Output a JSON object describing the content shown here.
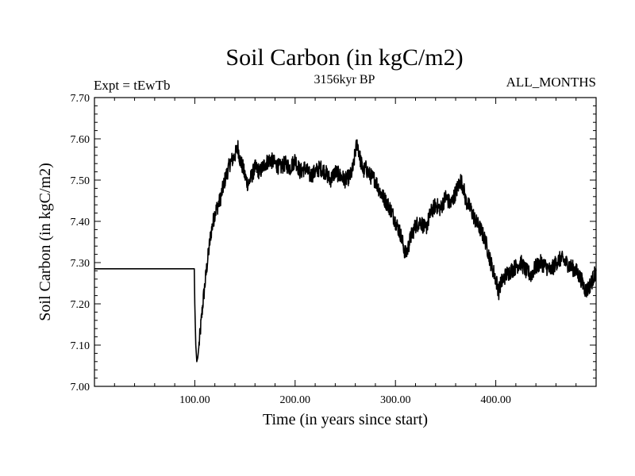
{
  "chart_data": {
    "type": "line",
    "title": "Soil Carbon (in kgC/m2)",
    "subtitle": "3156kyr BP",
    "left_label": "Expt = tEwTb",
    "right_label": "ALL_MONTHS",
    "xlabel": "Time (in years since start)",
    "ylabel": "Soil Carbon (in kgC/m2)",
    "xlim": [
      0,
      500
    ],
    "ylim": [
      7.0,
      7.7
    ],
    "x_ticks": [
      100,
      200,
      300,
      400
    ],
    "x_tick_labels": [
      "100.00",
      "200.00",
      "300.00",
      "400.00"
    ],
    "y_ticks": [
      7.0,
      7.1,
      7.2,
      7.3,
      7.4,
      7.5,
      7.6,
      7.7
    ],
    "y_tick_labels": [
      "7.00",
      "7.10",
      "7.20",
      "7.30",
      "7.40",
      "7.50",
      "7.60",
      "7.70"
    ],
    "series": [
      {
        "name": "Soil Carbon",
        "color": "#000000",
        "x": [
          0,
          99.5,
          100,
          101,
          102,
          103,
          105,
          108,
          112,
          116,
          120,
          125,
          130,
          135,
          140,
          143,
          145,
          148,
          150,
          153,
          155,
          160,
          165,
          170,
          175,
          180,
          185,
          190,
          195,
          200,
          205,
          210,
          215,
          220,
          225,
          230,
          235,
          240,
          245,
          250,
          255,
          258,
          260,
          262,
          265,
          268,
          270,
          275,
          280,
          285,
          290,
          295,
          300,
          305,
          308,
          310,
          312,
          315,
          320,
          325,
          330,
          335,
          340,
          345,
          350,
          355,
          360,
          365,
          368,
          370,
          375,
          380,
          385,
          390,
          395,
          400,
          403,
          405,
          410,
          415,
          420,
          425,
          430,
          435,
          440,
          445,
          450,
          455,
          460,
          465,
          470,
          475,
          480,
          485,
          490,
          495,
          500
        ],
        "y": [
          7.285,
          7.285,
          7.2,
          7.1,
          7.06,
          7.07,
          7.12,
          7.2,
          7.29,
          7.37,
          7.42,
          7.45,
          7.5,
          7.54,
          7.56,
          7.58,
          7.55,
          7.53,
          7.51,
          7.49,
          7.5,
          7.53,
          7.52,
          7.54,
          7.55,
          7.54,
          7.53,
          7.54,
          7.53,
          7.55,
          7.52,
          7.53,
          7.51,
          7.52,
          7.53,
          7.52,
          7.5,
          7.52,
          7.51,
          7.5,
          7.51,
          7.53,
          7.57,
          7.59,
          7.55,
          7.52,
          7.53,
          7.51,
          7.5,
          7.47,
          7.45,
          7.43,
          7.4,
          7.37,
          7.34,
          7.32,
          7.33,
          7.36,
          7.39,
          7.4,
          7.38,
          7.42,
          7.44,
          7.43,
          7.46,
          7.44,
          7.47,
          7.5,
          7.48,
          7.45,
          7.43,
          7.4,
          7.38,
          7.35,
          7.3,
          7.26,
          7.23,
          7.25,
          7.27,
          7.28,
          7.29,
          7.3,
          7.28,
          7.27,
          7.29,
          7.3,
          7.29,
          7.28,
          7.3,
          7.31,
          7.3,
          7.29,
          7.28,
          7.26,
          7.23,
          7.25,
          7.28
        ],
        "noise_amplitude": 0.02
      }
    ]
  }
}
